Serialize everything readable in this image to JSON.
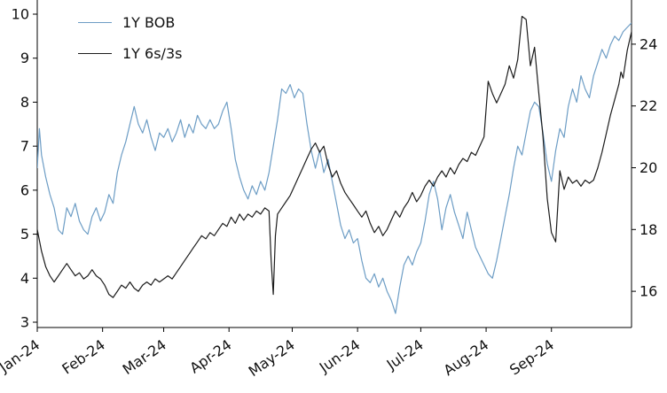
{
  "chart_data": {
    "type": "line",
    "title": "",
    "xlabel": "",
    "ylabel_left": "",
    "ylabel_right": "",
    "grid": false,
    "legend_position": "upper-left",
    "x_axis": {
      "tick_labels": [
        "Jan-24",
        "Feb-24",
        "Mar-24",
        "Apr-24",
        "May-24",
        "Jun-24",
        "Jul-24",
        "Aug-24",
        "Sep-24"
      ],
      "tick_days": [
        0,
        31,
        60,
        91,
        121,
        152,
        182,
        213,
        244
      ],
      "range_days": [
        0,
        282
      ],
      "label_rotation_deg": -35
    },
    "left_axis": {
      "ticks": [
        3,
        4,
        5,
        6,
        7,
        8,
        9,
        10
      ],
      "range": [
        3,
        10
      ]
    },
    "right_axis": {
      "ticks": [
        16,
        18,
        20,
        22,
        24
      ],
      "range": [
        15,
        25
      ]
    },
    "series": [
      {
        "name": "1Y BOB",
        "axis": "left",
        "color": "#6d9dc5",
        "points": [
          [
            0,
            6.5
          ],
          [
            1,
            7.4
          ],
          [
            2,
            6.8
          ],
          [
            4,
            6.3
          ],
          [
            6,
            5.9
          ],
          [
            8,
            5.6
          ],
          [
            10,
            5.1
          ],
          [
            12,
            5.0
          ],
          [
            14,
            5.6
          ],
          [
            16,
            5.4
          ],
          [
            18,
            5.7
          ],
          [
            20,
            5.3
          ],
          [
            22,
            5.1
          ],
          [
            24,
            5.0
          ],
          [
            26,
            5.4
          ],
          [
            28,
            5.6
          ],
          [
            30,
            5.3
          ],
          [
            32,
            5.5
          ],
          [
            34,
            5.9
          ],
          [
            36,
            5.7
          ],
          [
            38,
            6.4
          ],
          [
            40,
            6.8
          ],
          [
            42,
            7.1
          ],
          [
            44,
            7.5
          ],
          [
            46,
            7.9
          ],
          [
            48,
            7.5
          ],
          [
            50,
            7.3
          ],
          [
            52,
            7.6
          ],
          [
            54,
            7.2
          ],
          [
            56,
            6.9
          ],
          [
            58,
            7.3
          ],
          [
            60,
            7.2
          ],
          [
            62,
            7.4
          ],
          [
            64,
            7.1
          ],
          [
            66,
            7.3
          ],
          [
            68,
            7.6
          ],
          [
            70,
            7.2
          ],
          [
            72,
            7.5
          ],
          [
            74,
            7.3
          ],
          [
            76,
            7.7
          ],
          [
            78,
            7.5
          ],
          [
            80,
            7.4
          ],
          [
            82,
            7.6
          ],
          [
            84,
            7.4
          ],
          [
            86,
            7.5
          ],
          [
            88,
            7.8
          ],
          [
            90,
            8.0
          ],
          [
            92,
            7.4
          ],
          [
            94,
            6.7
          ],
          [
            96,
            6.3
          ],
          [
            98,
            6.0
          ],
          [
            100,
            5.8
          ],
          [
            102,
            6.1
          ],
          [
            104,
            5.9
          ],
          [
            106,
            6.2
          ],
          [
            108,
            6.0
          ],
          [
            110,
            6.4
          ],
          [
            112,
            7.0
          ],
          [
            114,
            7.6
          ],
          [
            116,
            8.3
          ],
          [
            118,
            8.2
          ],
          [
            120,
            8.4
          ],
          [
            122,
            8.1
          ],
          [
            124,
            8.3
          ],
          [
            126,
            8.2
          ],
          [
            128,
            7.5
          ],
          [
            130,
            6.9
          ],
          [
            132,
            6.5
          ],
          [
            134,
            6.9
          ],
          [
            136,
            6.4
          ],
          [
            138,
            6.7
          ],
          [
            140,
            6.2
          ],
          [
            142,
            5.7
          ],
          [
            144,
            5.2
          ],
          [
            146,
            4.9
          ],
          [
            148,
            5.1
          ],
          [
            150,
            4.8
          ],
          [
            152,
            4.9
          ],
          [
            154,
            4.4
          ],
          [
            156,
            4.0
          ],
          [
            158,
            3.9
          ],
          [
            160,
            4.1
          ],
          [
            162,
            3.8
          ],
          [
            164,
            4.0
          ],
          [
            166,
            3.7
          ],
          [
            168,
            3.5
          ],
          [
            170,
            3.2
          ],
          [
            172,
            3.8
          ],
          [
            174,
            4.3
          ],
          [
            176,
            4.5
          ],
          [
            178,
            4.3
          ],
          [
            180,
            4.6
          ],
          [
            182,
            4.8
          ],
          [
            184,
            5.3
          ],
          [
            186,
            5.9
          ],
          [
            188,
            6.2
          ],
          [
            190,
            5.8
          ],
          [
            192,
            5.1
          ],
          [
            194,
            5.6
          ],
          [
            196,
            5.9
          ],
          [
            198,
            5.5
          ],
          [
            200,
            5.2
          ],
          [
            202,
            4.9
          ],
          [
            204,
            5.5
          ],
          [
            206,
            5.1
          ],
          [
            208,
            4.7
          ],
          [
            210,
            4.5
          ],
          [
            212,
            4.3
          ],
          [
            214,
            4.1
          ],
          [
            216,
            4.0
          ],
          [
            218,
            4.4
          ],
          [
            220,
            4.9
          ],
          [
            222,
            5.4
          ],
          [
            224,
            5.9
          ],
          [
            226,
            6.5
          ],
          [
            228,
            7.0
          ],
          [
            230,
            6.8
          ],
          [
            232,
            7.3
          ],
          [
            234,
            7.8
          ],
          [
            236,
            8.0
          ],
          [
            238,
            7.9
          ],
          [
            240,
            7.3
          ],
          [
            242,
            6.6
          ],
          [
            244,
            6.2
          ],
          [
            246,
            6.9
          ],
          [
            248,
            7.4
          ],
          [
            250,
            7.2
          ],
          [
            252,
            7.9
          ],
          [
            254,
            8.3
          ],
          [
            256,
            8.0
          ],
          [
            258,
            8.6
          ],
          [
            260,
            8.3
          ],
          [
            262,
            8.1
          ],
          [
            264,
            8.6
          ],
          [
            266,
            8.9
          ],
          [
            268,
            9.2
          ],
          [
            270,
            9.0
          ],
          [
            272,
            9.3
          ],
          [
            274,
            9.5
          ],
          [
            276,
            9.4
          ],
          [
            278,
            9.6
          ],
          [
            280,
            9.7
          ],
          [
            282,
            9.8
          ]
        ]
      },
      {
        "name": "1Y 6s/3s",
        "axis": "right",
        "color": "#1c1c1c",
        "points": [
          [
            0,
            18.0
          ],
          [
            2,
            17.3
          ],
          [
            4,
            16.8
          ],
          [
            6,
            16.5
          ],
          [
            8,
            16.3
          ],
          [
            10,
            16.5
          ],
          [
            12,
            16.7
          ],
          [
            14,
            16.9
          ],
          [
            16,
            16.7
          ],
          [
            18,
            16.5
          ],
          [
            20,
            16.6
          ],
          [
            22,
            16.4
          ],
          [
            24,
            16.5
          ],
          [
            26,
            16.7
          ],
          [
            28,
            16.5
          ],
          [
            30,
            16.4
          ],
          [
            32,
            16.2
          ],
          [
            34,
            15.9
          ],
          [
            36,
            15.8
          ],
          [
            38,
            16.0
          ],
          [
            40,
            16.2
          ],
          [
            42,
            16.1
          ],
          [
            44,
            16.3
          ],
          [
            46,
            16.1
          ],
          [
            48,
            16.0
          ],
          [
            50,
            16.2
          ],
          [
            52,
            16.3
          ],
          [
            54,
            16.2
          ],
          [
            56,
            16.4
          ],
          [
            58,
            16.3
          ],
          [
            60,
            16.4
          ],
          [
            62,
            16.5
          ],
          [
            64,
            16.4
          ],
          [
            66,
            16.6
          ],
          [
            68,
            16.8
          ],
          [
            70,
            17.0
          ],
          [
            72,
            17.2
          ],
          [
            74,
            17.4
          ],
          [
            76,
            17.6
          ],
          [
            78,
            17.8
          ],
          [
            80,
            17.7
          ],
          [
            82,
            17.9
          ],
          [
            84,
            17.8
          ],
          [
            86,
            18.0
          ],
          [
            88,
            18.2
          ],
          [
            90,
            18.1
          ],
          [
            92,
            18.4
          ],
          [
            94,
            18.2
          ],
          [
            96,
            18.5
          ],
          [
            98,
            18.3
          ],
          [
            100,
            18.5
          ],
          [
            102,
            18.4
          ],
          [
            104,
            18.6
          ],
          [
            106,
            18.5
          ],
          [
            108,
            18.7
          ],
          [
            110,
            18.6
          ],
          [
            111,
            17.0
          ],
          [
            112,
            15.9
          ],
          [
            113,
            17.8
          ],
          [
            114,
            18.5
          ],
          [
            116,
            18.7
          ],
          [
            118,
            18.9
          ],
          [
            120,
            19.1
          ],
          [
            122,
            19.4
          ],
          [
            124,
            19.7
          ],
          [
            126,
            20.0
          ],
          [
            128,
            20.3
          ],
          [
            130,
            20.6
          ],
          [
            132,
            20.8
          ],
          [
            134,
            20.5
          ],
          [
            136,
            20.7
          ],
          [
            138,
            20.1
          ],
          [
            140,
            19.7
          ],
          [
            142,
            19.9
          ],
          [
            144,
            19.5
          ],
          [
            146,
            19.2
          ],
          [
            148,
            19.0
          ],
          [
            150,
            18.8
          ],
          [
            152,
            18.6
          ],
          [
            154,
            18.4
          ],
          [
            156,
            18.6
          ],
          [
            158,
            18.2
          ],
          [
            160,
            17.9
          ],
          [
            162,
            18.1
          ],
          [
            164,
            17.8
          ],
          [
            166,
            18.0
          ],
          [
            168,
            18.3
          ],
          [
            170,
            18.6
          ],
          [
            172,
            18.4
          ],
          [
            174,
            18.7
          ],
          [
            176,
            18.9
          ],
          [
            178,
            19.2
          ],
          [
            180,
            18.9
          ],
          [
            182,
            19.1
          ],
          [
            184,
            19.4
          ],
          [
            186,
            19.6
          ],
          [
            188,
            19.4
          ],
          [
            190,
            19.7
          ],
          [
            192,
            19.9
          ],
          [
            194,
            19.7
          ],
          [
            196,
            20.0
          ],
          [
            198,
            19.8
          ],
          [
            200,
            20.1
          ],
          [
            202,
            20.3
          ],
          [
            204,
            20.2
          ],
          [
            206,
            20.5
          ],
          [
            208,
            20.4
          ],
          [
            210,
            20.7
          ],
          [
            212,
            21.0
          ],
          [
            214,
            22.8
          ],
          [
            216,
            22.4
          ],
          [
            218,
            22.1
          ],
          [
            220,
            22.4
          ],
          [
            222,
            22.7
          ],
          [
            224,
            23.3
          ],
          [
            226,
            22.9
          ],
          [
            228,
            23.5
          ],
          [
            230,
            24.9
          ],
          [
            232,
            24.8
          ],
          [
            234,
            23.3
          ],
          [
            236,
            23.9
          ],
          [
            238,
            22.4
          ],
          [
            240,
            21.0
          ],
          [
            242,
            19.0
          ],
          [
            244,
            17.9
          ],
          [
            246,
            17.6
          ],
          [
            248,
            19.9
          ],
          [
            250,
            19.3
          ],
          [
            252,
            19.7
          ],
          [
            254,
            19.5
          ],
          [
            256,
            19.6
          ],
          [
            258,
            19.4
          ],
          [
            260,
            19.6
          ],
          [
            262,
            19.5
          ],
          [
            264,
            19.6
          ],
          [
            266,
            20.0
          ],
          [
            268,
            20.5
          ],
          [
            270,
            21.1
          ],
          [
            272,
            21.7
          ],
          [
            274,
            22.2
          ],
          [
            276,
            22.7
          ],
          [
            277,
            23.1
          ],
          [
            278,
            22.9
          ],
          [
            280,
            23.8
          ],
          [
            281,
            24.1
          ],
          [
            282,
            24.4
          ]
        ]
      }
    ]
  }
}
